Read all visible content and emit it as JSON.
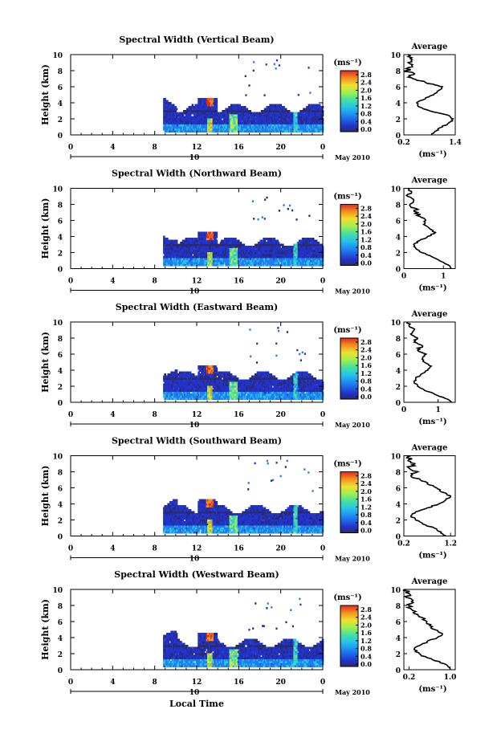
{
  "figure": {
    "date_label": "May 2010",
    "local_time_label": "Local Time",
    "day_label": "10",
    "units_label": "(ms⁻¹)",
    "average_title": "Average",
    "height_label": "Height (km)",
    "avg_xlabel": "(ms⁻¹)"
  },
  "colorscale": {
    "ticks": [
      "2.8",
      "2.4",
      "2.0",
      "1.6",
      "1.2",
      "0.8",
      "0.4",
      "0.0"
    ],
    "colors": [
      "#2a2a6e",
      "#2233cc",
      "#1e7ef0",
      "#25c4e8",
      "#45e0a0",
      "#9ef050",
      "#f0e030",
      "#f59020",
      "#e02a20"
    ]
  },
  "chart_data": [
    {
      "type": "heatmap",
      "title": "Spectral Width (Vertical Beam)",
      "xlabel": "",
      "ylabel": "Height (km)",
      "xlim": [
        0,
        24
      ],
      "ylim": [
        0,
        10
      ],
      "xticks": [
        "0",
        "4",
        "8",
        "12",
        "16",
        "20",
        "0"
      ],
      "yticks": [
        "0",
        "2",
        "4",
        "6",
        "8",
        "10"
      ],
      "colorbar_ticks": [
        "2.8",
        "2.4",
        "2.0",
        "1.6",
        "1.2",
        "0.8",
        "0.4",
        "0.0"
      ],
      "clim": [
        0,
        3.0
      ],
      "average": {
        "xlim": [
          0.2,
          1.4
        ],
        "xticks": [
          "0.2",
          "1.4"
        ],
        "ylim": [
          0,
          10
        ],
        "profile": [
          [
            0.85,
            0
          ],
          [
            0.95,
            0.5
          ],
          [
            1.1,
            1.0
          ],
          [
            1.25,
            1.5
          ],
          [
            1.35,
            2.0
          ],
          [
            1.2,
            2.5
          ],
          [
            0.8,
            3.0
          ],
          [
            0.55,
            3.5
          ],
          [
            0.5,
            4.0
          ],
          [
            0.7,
            4.5
          ],
          [
            0.9,
            5.0
          ],
          [
            1.0,
            5.5
          ],
          [
            1.1,
            6.0
          ],
          [
            0.9,
            6.3
          ],
          [
            0.5,
            6.8
          ],
          [
            0.3,
            7.2
          ],
          [
            0.45,
            7.6
          ],
          [
            0.25,
            8.0
          ],
          [
            0.4,
            8.5
          ],
          [
            0.3,
            9.0
          ],
          [
            0.35,
            9.5
          ],
          [
            0.3,
            10
          ]
        ]
      }
    },
    {
      "type": "heatmap",
      "title": "Spectral Width (Northward Beam)",
      "xlabel": "",
      "ylabel": "Height (km)",
      "xlim": [
        0,
        24
      ],
      "ylim": [
        0,
        10
      ],
      "xticks": [
        "0",
        "4",
        "8",
        "12",
        "16",
        "20",
        "0"
      ],
      "yticks": [
        "0",
        "2",
        "4",
        "6",
        "8",
        "10"
      ],
      "colorbar_ticks": [
        "2.8",
        "2.4",
        "2.0",
        "1.6",
        "1.2",
        "0.8",
        "0.4",
        "0.0"
      ],
      "clim": [
        0,
        3.0
      ],
      "average": {
        "xlim": [
          0,
          1.3
        ],
        "xticks": [
          "0",
          "1"
        ],
        "ylim": [
          0,
          10
        ],
        "profile": [
          [
            1.2,
            0
          ],
          [
            1.1,
            0.5
          ],
          [
            0.9,
            1.0
          ],
          [
            0.7,
            1.5
          ],
          [
            0.45,
            2.0
          ],
          [
            0.3,
            2.5
          ],
          [
            0.25,
            3.0
          ],
          [
            0.4,
            3.5
          ],
          [
            0.6,
            4.0
          ],
          [
            0.8,
            4.5
          ],
          [
            0.65,
            5.0
          ],
          [
            0.5,
            5.5
          ],
          [
            0.55,
            6.0
          ],
          [
            0.4,
            6.5
          ],
          [
            0.35,
            7.0
          ],
          [
            0.3,
            7.5
          ],
          [
            0.15,
            8.0
          ],
          [
            0.25,
            8.5
          ],
          [
            0.1,
            9.0
          ],
          [
            0.2,
            9.5
          ],
          [
            0.1,
            10
          ]
        ]
      }
    },
    {
      "type": "heatmap",
      "title": "Spectral Width (Eastward Beam)",
      "xlabel": "",
      "ylabel": "Height (km)",
      "xlim": [
        0,
        24
      ],
      "ylim": [
        0,
        10
      ],
      "xticks": [
        "0",
        "4",
        "8",
        "12",
        "16",
        "20",
        "0"
      ],
      "yticks": [
        "0",
        "2",
        "4",
        "6",
        "8",
        "10"
      ],
      "colorbar_ticks": [
        "2.8",
        "2.4",
        "2.0",
        "1.6",
        "1.2",
        "0.8",
        "0.4",
        "0.0"
      ],
      "clim": [
        0,
        3.0
      ],
      "average": {
        "xlim": [
          0,
          1.5
        ],
        "xticks": [
          "0",
          "1"
        ],
        "ylim": [
          0,
          10
        ],
        "profile": [
          [
            1.4,
            0
          ],
          [
            1.2,
            0.5
          ],
          [
            0.9,
            1.0
          ],
          [
            0.6,
            1.5
          ],
          [
            0.4,
            2.0
          ],
          [
            0.3,
            2.5
          ],
          [
            0.35,
            3.0
          ],
          [
            0.5,
            3.5
          ],
          [
            0.7,
            4.0
          ],
          [
            0.8,
            4.5
          ],
          [
            0.6,
            5.0
          ],
          [
            0.55,
            5.5
          ],
          [
            0.65,
            6.0
          ],
          [
            0.4,
            6.5
          ],
          [
            0.55,
            7.0
          ],
          [
            0.3,
            7.5
          ],
          [
            0.4,
            8.0
          ],
          [
            0.2,
            8.5
          ],
          [
            0.3,
            9.0
          ],
          [
            0.15,
            9.5
          ],
          [
            0.1,
            10
          ]
        ]
      }
    },
    {
      "type": "heatmap",
      "title": "Spectral Width (Southward Beam)",
      "xlabel": "",
      "ylabel": "Height (km)",
      "xlim": [
        0,
        24
      ],
      "ylim": [
        0,
        10
      ],
      "xticks": [
        "0",
        "4",
        "8",
        "12",
        "16",
        "20",
        "0"
      ],
      "yticks": [
        "0",
        "2",
        "4",
        "6",
        "8",
        "10"
      ],
      "colorbar_ticks": [
        "2.8",
        "2.4",
        "2.0",
        "1.6",
        "1.2",
        "0.8",
        "0.4",
        "0.0"
      ],
      "clim": [
        0,
        3.0
      ],
      "average": {
        "xlim": [
          0.2,
          1.3
        ],
        "xticks": [
          "0.2",
          "1.2"
        ],
        "ylim": [
          0,
          10
        ],
        "profile": [
          [
            1.1,
            0
          ],
          [
            1.0,
            0.5
          ],
          [
            0.85,
            1.0
          ],
          [
            0.6,
            1.5
          ],
          [
            0.45,
            2.0
          ],
          [
            0.35,
            2.5
          ],
          [
            0.45,
            3.0
          ],
          [
            0.7,
            3.5
          ],
          [
            0.95,
            4.0
          ],
          [
            1.1,
            4.5
          ],
          [
            1.2,
            5.0
          ],
          [
            1.0,
            5.5
          ],
          [
            0.9,
            6.0
          ],
          [
            0.7,
            6.5
          ],
          [
            0.55,
            7.0
          ],
          [
            0.35,
            7.5
          ],
          [
            0.5,
            8.0
          ],
          [
            0.3,
            8.5
          ],
          [
            0.45,
            9.0
          ],
          [
            0.3,
            9.5
          ],
          [
            0.35,
            10
          ]
        ]
      }
    },
    {
      "type": "heatmap",
      "title": "Spectral Width (Westward Beam)",
      "xlabel": "Local Time",
      "ylabel": "Height (km)",
      "xlim": [
        0,
        24
      ],
      "ylim": [
        0,
        10
      ],
      "xticks": [
        "0",
        "4",
        "8",
        "12",
        "16",
        "20",
        "0"
      ],
      "yticks": [
        "0",
        "2",
        "4",
        "6",
        "8",
        "10"
      ],
      "colorbar_ticks": [
        "2.8",
        "2.4",
        "2.0",
        "1.6",
        "1.2",
        "0.8",
        "0.4",
        "0.0"
      ],
      "clim": [
        0,
        3.0
      ],
      "average": {
        "xlim": [
          0.1,
          1.1
        ],
        "xticks": [
          "0.2",
          "1.0"
        ],
        "ylim": [
          0,
          10
        ],
        "profile": [
          [
            1.0,
            0
          ],
          [
            0.95,
            0.5
          ],
          [
            0.8,
            1.0
          ],
          [
            0.55,
            1.5
          ],
          [
            0.4,
            2.0
          ],
          [
            0.3,
            2.5
          ],
          [
            0.4,
            3.0
          ],
          [
            0.55,
            3.5
          ],
          [
            0.75,
            4.0
          ],
          [
            0.85,
            4.5
          ],
          [
            0.7,
            5.0
          ],
          [
            0.6,
            5.5
          ],
          [
            0.55,
            6.0
          ],
          [
            0.45,
            6.5
          ],
          [
            0.3,
            7.0
          ],
          [
            0.25,
            7.5
          ],
          [
            0.2,
            8.0
          ],
          [
            0.25,
            8.5
          ],
          [
            0.15,
            9.0
          ],
          [
            0.2,
            9.5
          ],
          [
            0.15,
            10
          ]
        ]
      }
    }
  ]
}
